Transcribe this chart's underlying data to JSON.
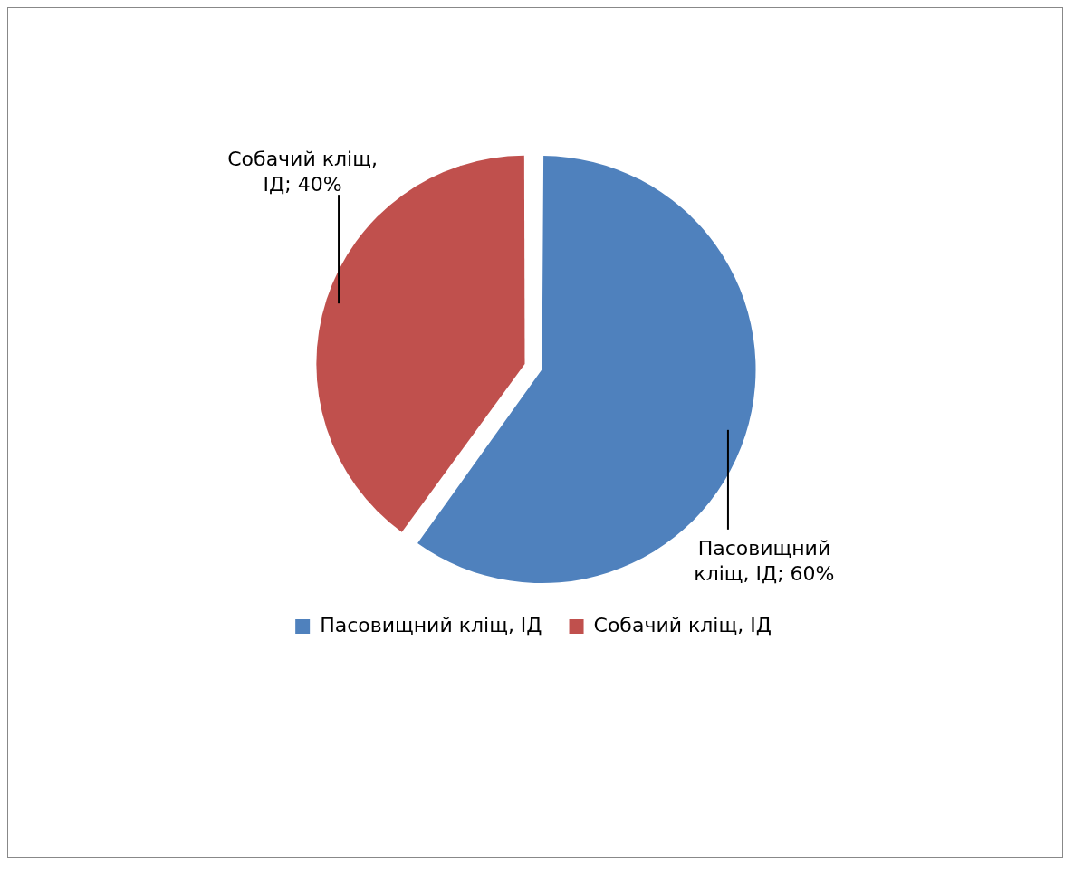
{
  "chart_data": {
    "type": "pie",
    "categories": [
      "Пасовищний кліщ, ІД",
      "Собачий кліщ, ІД"
    ],
    "values": [
      60,
      40
    ],
    "colors": [
      "#4f81bd",
      "#c0504d"
    ],
    "value_labels": [
      "Пасовищний кліщ, ІД; 60%",
      "Собачий кліщ, ІД; 40%"
    ],
    "legend": "bottom"
  }
}
